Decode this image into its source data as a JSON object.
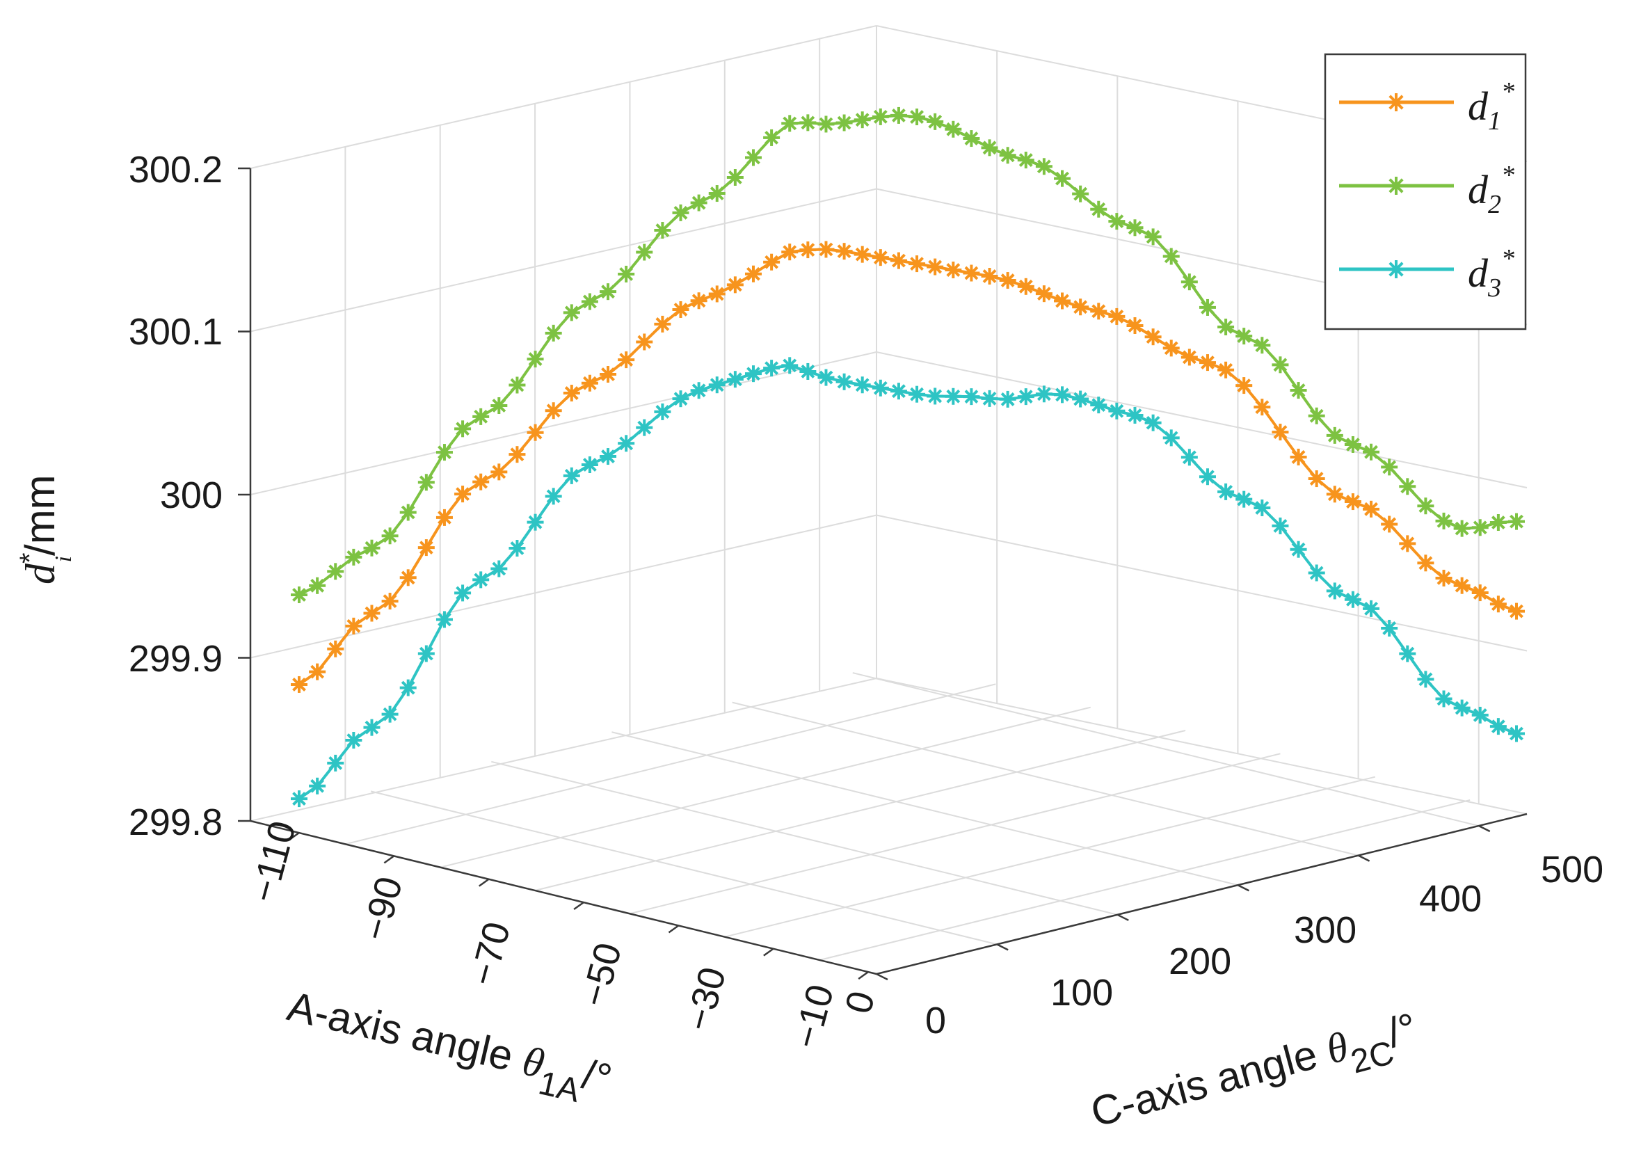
{
  "chart_data": {
    "type": "line",
    "x_axis": {
      "label": "A-axis angle ",
      "symbol": "θ",
      "sub": "1A",
      "unit": "/°",
      "ticks": [
        "−110",
        "−90",
        "−70",
        "−50",
        "−30",
        "−10",
        "0"
      ]
    },
    "y_axis": {
      "label": "C-axis angle ",
      "symbol": "θ",
      "sub": "2C",
      "unit": "/°",
      "ticks": [
        "0",
        "100",
        "200",
        "300",
        "400",
        "500"
      ]
    },
    "z_axis": {
      "symbol": "d",
      "sup": "*",
      "sub": "i",
      "unit": "/mm",
      "ticks": [
        "299.8",
        "299.9",
        "300",
        "300.1",
        "300.2"
      ],
      "zlim": [
        299.8,
        300.2
      ]
    },
    "grid": true,
    "legend_position": "top-right",
    "legend": [
      {
        "base": "d",
        "sub": "1",
        "sup": "*"
      },
      {
        "base": "d",
        "sub": "2",
        "sup": "*"
      },
      {
        "base": "d",
        "sub": "3",
        "sup": "*"
      }
    ],
    "series": [
      {
        "name": "d1*",
        "color": "#F7941D",
        "keyframes": [
          [
            0,
            299.89
          ],
          [
            4,
            299.92
          ],
          [
            10,
            299.98
          ],
          [
            16,
            300.02
          ],
          [
            22,
            300.05
          ],
          [
            30,
            300.07
          ],
          [
            38,
            300.07
          ],
          [
            44,
            300.06
          ],
          [
            50,
            300.04
          ],
          [
            58,
            299.97
          ],
          [
            64,
            299.93
          ],
          [
            67,
            299.92
          ]
        ]
      },
      {
        "name": "d2*",
        "color": "#7DC242",
        "keyframes": [
          [
            0,
            299.945
          ],
          [
            4,
            299.96
          ],
          [
            10,
            300.02
          ],
          [
            16,
            300.07
          ],
          [
            22,
            300.11
          ],
          [
            28,
            300.145
          ],
          [
            34,
            300.16
          ],
          [
            40,
            300.145
          ],
          [
            46,
            300.115
          ],
          [
            52,
            300.06
          ],
          [
            58,
            300.005
          ],
          [
            64,
            299.965
          ],
          [
            67,
            299.975
          ]
        ]
      },
      {
        "name": "d3*",
        "color": "#2EC4C4",
        "keyframes": [
          [
            0,
            299.82
          ],
          [
            4,
            299.85
          ],
          [
            10,
            299.92
          ],
          [
            16,
            299.97
          ],
          [
            22,
            299.995
          ],
          [
            26,
            299.995
          ],
          [
            30,
            299.99
          ],
          [
            34,
            299.99
          ],
          [
            38,
            299.995
          ],
          [
            42,
            300.005
          ],
          [
            46,
            300.0
          ],
          [
            52,
            299.96
          ],
          [
            58,
            299.91
          ],
          [
            64,
            299.855
          ],
          [
            67,
            299.845
          ]
        ]
      }
    ],
    "marker": "asterisk",
    "point_count": 68
  }
}
